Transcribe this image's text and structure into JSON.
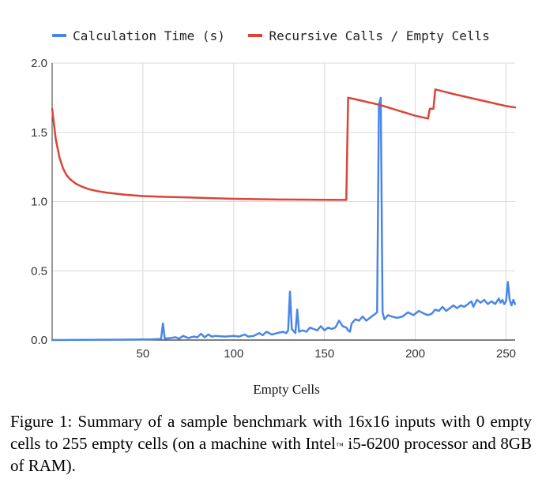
{
  "chart_data": {
    "type": "line",
    "title": "",
    "xlabel": "Empty Cells",
    "ylabel": "",
    "xlim": [
      0,
      255
    ],
    "ylim": [
      0,
      2.0
    ],
    "x_ticks": [
      50,
      100,
      150,
      200,
      250
    ],
    "y_ticks": [
      "0.0",
      "0.5",
      "1.0",
      "1.5",
      "2.0"
    ],
    "grid": true,
    "legend_position": "top",
    "series": [
      {
        "name": "Calculation Time (s)",
        "color": "#4a86e8",
        "points": [
          [
            0,
            0.0
          ],
          [
            40,
            0.003
          ],
          [
            55,
            0.005
          ],
          [
            60,
            0.008
          ],
          [
            61,
            0.12
          ],
          [
            62,
            0.01
          ],
          [
            65,
            0.015
          ],
          [
            68,
            0.02
          ],
          [
            70,
            0.01
          ],
          [
            72,
            0.03
          ],
          [
            75,
            0.015
          ],
          [
            78,
            0.025
          ],
          [
            80,
            0.02
          ],
          [
            82,
            0.045
          ],
          [
            84,
            0.02
          ],
          [
            86,
            0.04
          ],
          [
            88,
            0.025
          ],
          [
            90,
            0.03
          ],
          [
            95,
            0.025
          ],
          [
            100,
            0.03
          ],
          [
            103,
            0.025
          ],
          [
            106,
            0.04
          ],
          [
            108,
            0.025
          ],
          [
            111,
            0.03
          ],
          [
            114,
            0.05
          ],
          [
            116,
            0.035
          ],
          [
            118,
            0.06
          ],
          [
            121,
            0.04
          ],
          [
            124,
            0.05
          ],
          [
            127,
            0.06
          ],
          [
            129,
            0.05
          ],
          [
            130,
            0.07
          ],
          [
            131,
            0.35
          ],
          [
            132,
            0.08
          ],
          [
            134,
            0.05
          ],
          [
            135,
            0.22
          ],
          [
            136,
            0.06
          ],
          [
            138,
            0.07
          ],
          [
            140,
            0.06
          ],
          [
            142,
            0.09
          ],
          [
            144,
            0.08
          ],
          [
            146,
            0.07
          ],
          [
            148,
            0.1
          ],
          [
            150,
            0.07
          ],
          [
            152,
            0.09
          ],
          [
            154,
            0.08
          ],
          [
            156,
            0.09
          ],
          [
            158,
            0.14
          ],
          [
            160,
            0.1
          ],
          [
            162,
            0.09
          ],
          [
            163,
            0.07
          ],
          [
            164,
            0.06
          ],
          [
            165,
            0.12
          ],
          [
            167,
            0.15
          ],
          [
            169,
            0.14
          ],
          [
            171,
            0.17
          ],
          [
            173,
            0.14
          ],
          [
            175,
            0.16
          ],
          [
            177,
            0.18
          ],
          [
            179,
            0.2
          ],
          [
            180,
            1.7
          ],
          [
            181,
            1.75
          ],
          [
            182,
            0.2
          ],
          [
            183,
            0.15
          ],
          [
            185,
            0.18
          ],
          [
            187,
            0.17
          ],
          [
            190,
            0.16
          ],
          [
            193,
            0.17
          ],
          [
            196,
            0.2
          ],
          [
            199,
            0.18
          ],
          [
            202,
            0.21
          ],
          [
            205,
            0.19
          ],
          [
            207,
            0.18
          ],
          [
            209,
            0.19
          ],
          [
            211,
            0.22
          ],
          [
            213,
            0.21
          ],
          [
            215,
            0.24
          ],
          [
            217,
            0.21
          ],
          [
            219,
            0.23
          ],
          [
            221,
            0.25
          ],
          [
            223,
            0.23
          ],
          [
            225,
            0.25
          ],
          [
            227,
            0.24
          ],
          [
            229,
            0.26
          ],
          [
            231,
            0.28
          ],
          [
            232,
            0.24
          ],
          [
            234,
            0.29
          ],
          [
            236,
            0.27
          ],
          [
            238,
            0.29
          ],
          [
            240,
            0.26
          ],
          [
            242,
            0.28
          ],
          [
            244,
            0.26
          ],
          [
            246,
            0.3
          ],
          [
            247,
            0.27
          ],
          [
            248,
            0.29
          ],
          [
            249,
            0.26
          ],
          [
            250,
            0.28
          ],
          [
            251,
            0.42
          ],
          [
            252,
            0.29
          ],
          [
            253,
            0.25
          ],
          [
            254,
            0.29
          ],
          [
            255,
            0.26
          ]
        ]
      },
      {
        "name": "Recursive Calls / Empty Cells",
        "color": "#db4437",
        "points": [
          [
            0,
            1.67
          ],
          [
            2,
            1.45
          ],
          [
            4,
            1.32
          ],
          [
            6,
            1.24
          ],
          [
            8,
            1.19
          ],
          [
            10,
            1.16
          ],
          [
            13,
            1.13
          ],
          [
            16,
            1.11
          ],
          [
            20,
            1.09
          ],
          [
            25,
            1.075
          ],
          [
            30,
            1.065
          ],
          [
            40,
            1.05
          ],
          [
            50,
            1.04
          ],
          [
            60,
            1.035
          ],
          [
            75,
            1.03
          ],
          [
            100,
            1.02
          ],
          [
            125,
            1.015
          ],
          [
            150,
            1.013
          ],
          [
            162,
            1.012
          ],
          [
            163,
            1.75
          ],
          [
            170,
            1.73
          ],
          [
            180,
            1.7
          ],
          [
            190,
            1.66
          ],
          [
            200,
            1.62
          ],
          [
            207,
            1.6
          ],
          [
            208,
            1.67
          ],
          [
            210,
            1.67
          ],
          [
            211,
            1.81
          ],
          [
            220,
            1.78
          ],
          [
            230,
            1.75
          ],
          [
            240,
            1.72
          ],
          [
            250,
            1.69
          ],
          [
            255,
            1.68
          ]
        ]
      }
    ]
  },
  "caption": {
    "text": "Figure 1: Summary of a sample benchmark with 16x16 inputs with 0 empty cells to 255 empty cells (on a machine with Intel",
    "trademark": "™",
    "text_end": " i5-6200 processor and 8GB of RAM)."
  }
}
